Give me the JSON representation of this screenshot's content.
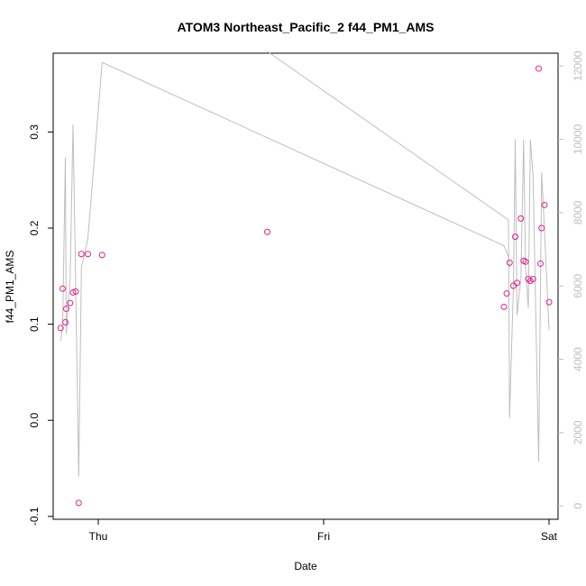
{
  "chart_data": {
    "type": "scatter",
    "title": "ATOM3 Northeast_Pacific_2 f44_PM1_AMS",
    "xlabel": "Date",
    "ylabel": "f44_PM1_AMS",
    "x_ticks": [
      "Thu",
      "Fri",
      "Sat"
    ],
    "x_tick_positions": [
      0,
      1,
      2
    ],
    "xlim": [
      -0.2,
      2.04
    ],
    "ylim": [
      -0.103,
      0.382
    ],
    "y_ticks": [
      -0.1,
      0.0,
      0.1,
      0.2,
      0.3
    ],
    "y_tick_labels": [
      "-0.1",
      "0.0",
      "0.1",
      "0.2",
      "0.3"
    ],
    "y2lim": [
      -365,
      12350
    ],
    "y2_ticks": [
      0,
      2000,
      4000,
      6000,
      8000,
      10000,
      12000
    ],
    "y2_tick_labels": [
      "0",
      "2000",
      "4000",
      "6000",
      "8000",
      "10000",
      "12000"
    ],
    "colors": {
      "points": "#e0218a",
      "line": "#bebebe",
      "axis": "#000000",
      "right_axis": "#bebebe"
    },
    "series": [
      {
        "kind": "points",
        "x": [
          -0.167,
          -0.158,
          -0.146,
          -0.142,
          -0.125,
          -0.112,
          -0.1,
          -0.087,
          -0.075,
          -0.046,
          0.017,
          0.75,
          1.8,
          1.812,
          1.825,
          1.842,
          1.85,
          1.858,
          1.875,
          1.887,
          1.896,
          1.908,
          1.917,
          1.929,
          1.954,
          1.962,
          1.967,
          1.98,
          2.0
        ],
        "y": [
          0.096,
          0.137,
          0.102,
          0.116,
          0.122,
          0.133,
          0.134,
          -0.086,
          0.173,
          0.173,
          0.172,
          0.196,
          0.118,
          0.132,
          0.164,
          0.14,
          0.191,
          0.143,
          0.21,
          0.166,
          0.165,
          0.147,
          0.145,
          0.147,
          0.366,
          0.163,
          0.2,
          0.224,
          0.123
        ]
      },
      {
        "kind": "line",
        "segments": [
          {
            "x": [
              -0.167,
              -0.158,
              -0.146,
              -0.142,
              -0.125,
              -0.112,
              -0.1,
              -0.087,
              -0.075,
              -0.046,
              0.017
            ],
            "y": [
              4500,
              4900,
              9500,
              4700,
              6200,
              10400,
              6000,
              800,
              6500,
              7300,
              12100
            ]
          },
          {
            "x": [
              0.017,
              1.8,
              1.82,
              1.825
            ],
            "y": [
              12100,
              7100,
              6800,
              6500
            ]
          },
          {
            "x": [
              0.75,
              1.82,
              1.825,
              1.842,
              1.85,
              1.858,
              1.875,
              1.887,
              1.896,
              1.908,
              1.917,
              1.929,
              1.954,
              1.967,
              1.98,
              2.0
            ],
            "y": [
              12400,
              7800,
              2400,
              6000,
              10000,
              5200,
              6200,
              10000,
              6500,
              5400,
              10000,
              9000,
              1200,
              9100,
              7500,
              4800
            ]
          }
        ]
      }
    ]
  }
}
